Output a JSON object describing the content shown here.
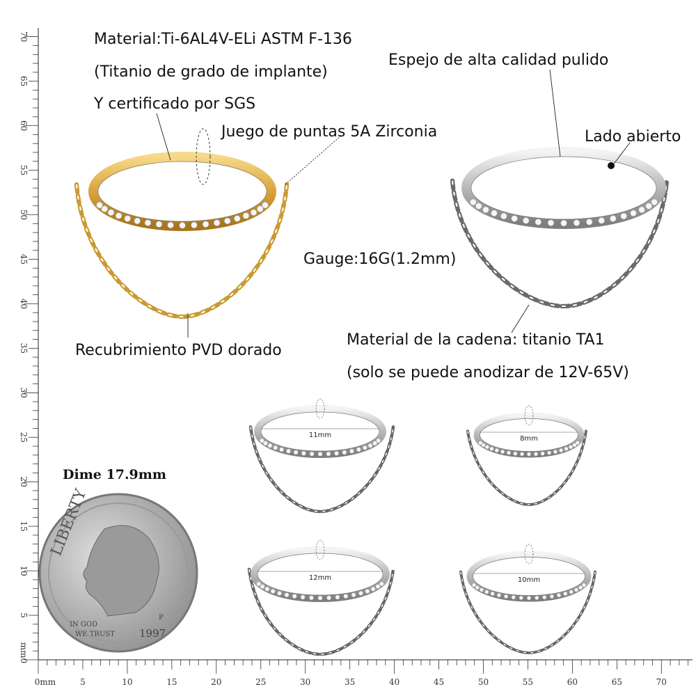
{
  "labels": {
    "material": "Material:Ti-6AL4V-ELi ASTM F-136",
    "titanium": "(Titanio de grado de implante)",
    "certified": "Y certificado por SGS",
    "tips": "Juego de puntas 5A Zirconia",
    "mirror": "Espejo de alta calidad pulido",
    "open_side": "Lado abierto",
    "gauge": "Gauge:16G(1.2mm)",
    "coating": "Recubrimiento PVD dorado",
    "chain_material": "Material de la cadena: titanio TA1",
    "anodize": "(solo se puede anodizar de 12V-65V)",
    "dime": "Dime 17.9mm"
  },
  "sizes": [
    "11mm",
    "8mm",
    "12mm",
    "10mm"
  ],
  "coin": {
    "motto": "LIBERTY",
    "god": "IN GOD",
    "trust": "WE TRUST",
    "year": "1997",
    "mint": "P"
  },
  "ruler": {
    "bottom": [
      "0mm",
      "5",
      "10",
      "15",
      "20",
      "25",
      "30",
      "35",
      "40",
      "45",
      "50",
      "55",
      "60",
      "65",
      "70"
    ],
    "left": [
      "mm0",
      "5",
      "10",
      "15",
      "20",
      "25",
      "30",
      "35",
      "40",
      "45",
      "50",
      "55",
      "60",
      "65",
      "70"
    ]
  }
}
